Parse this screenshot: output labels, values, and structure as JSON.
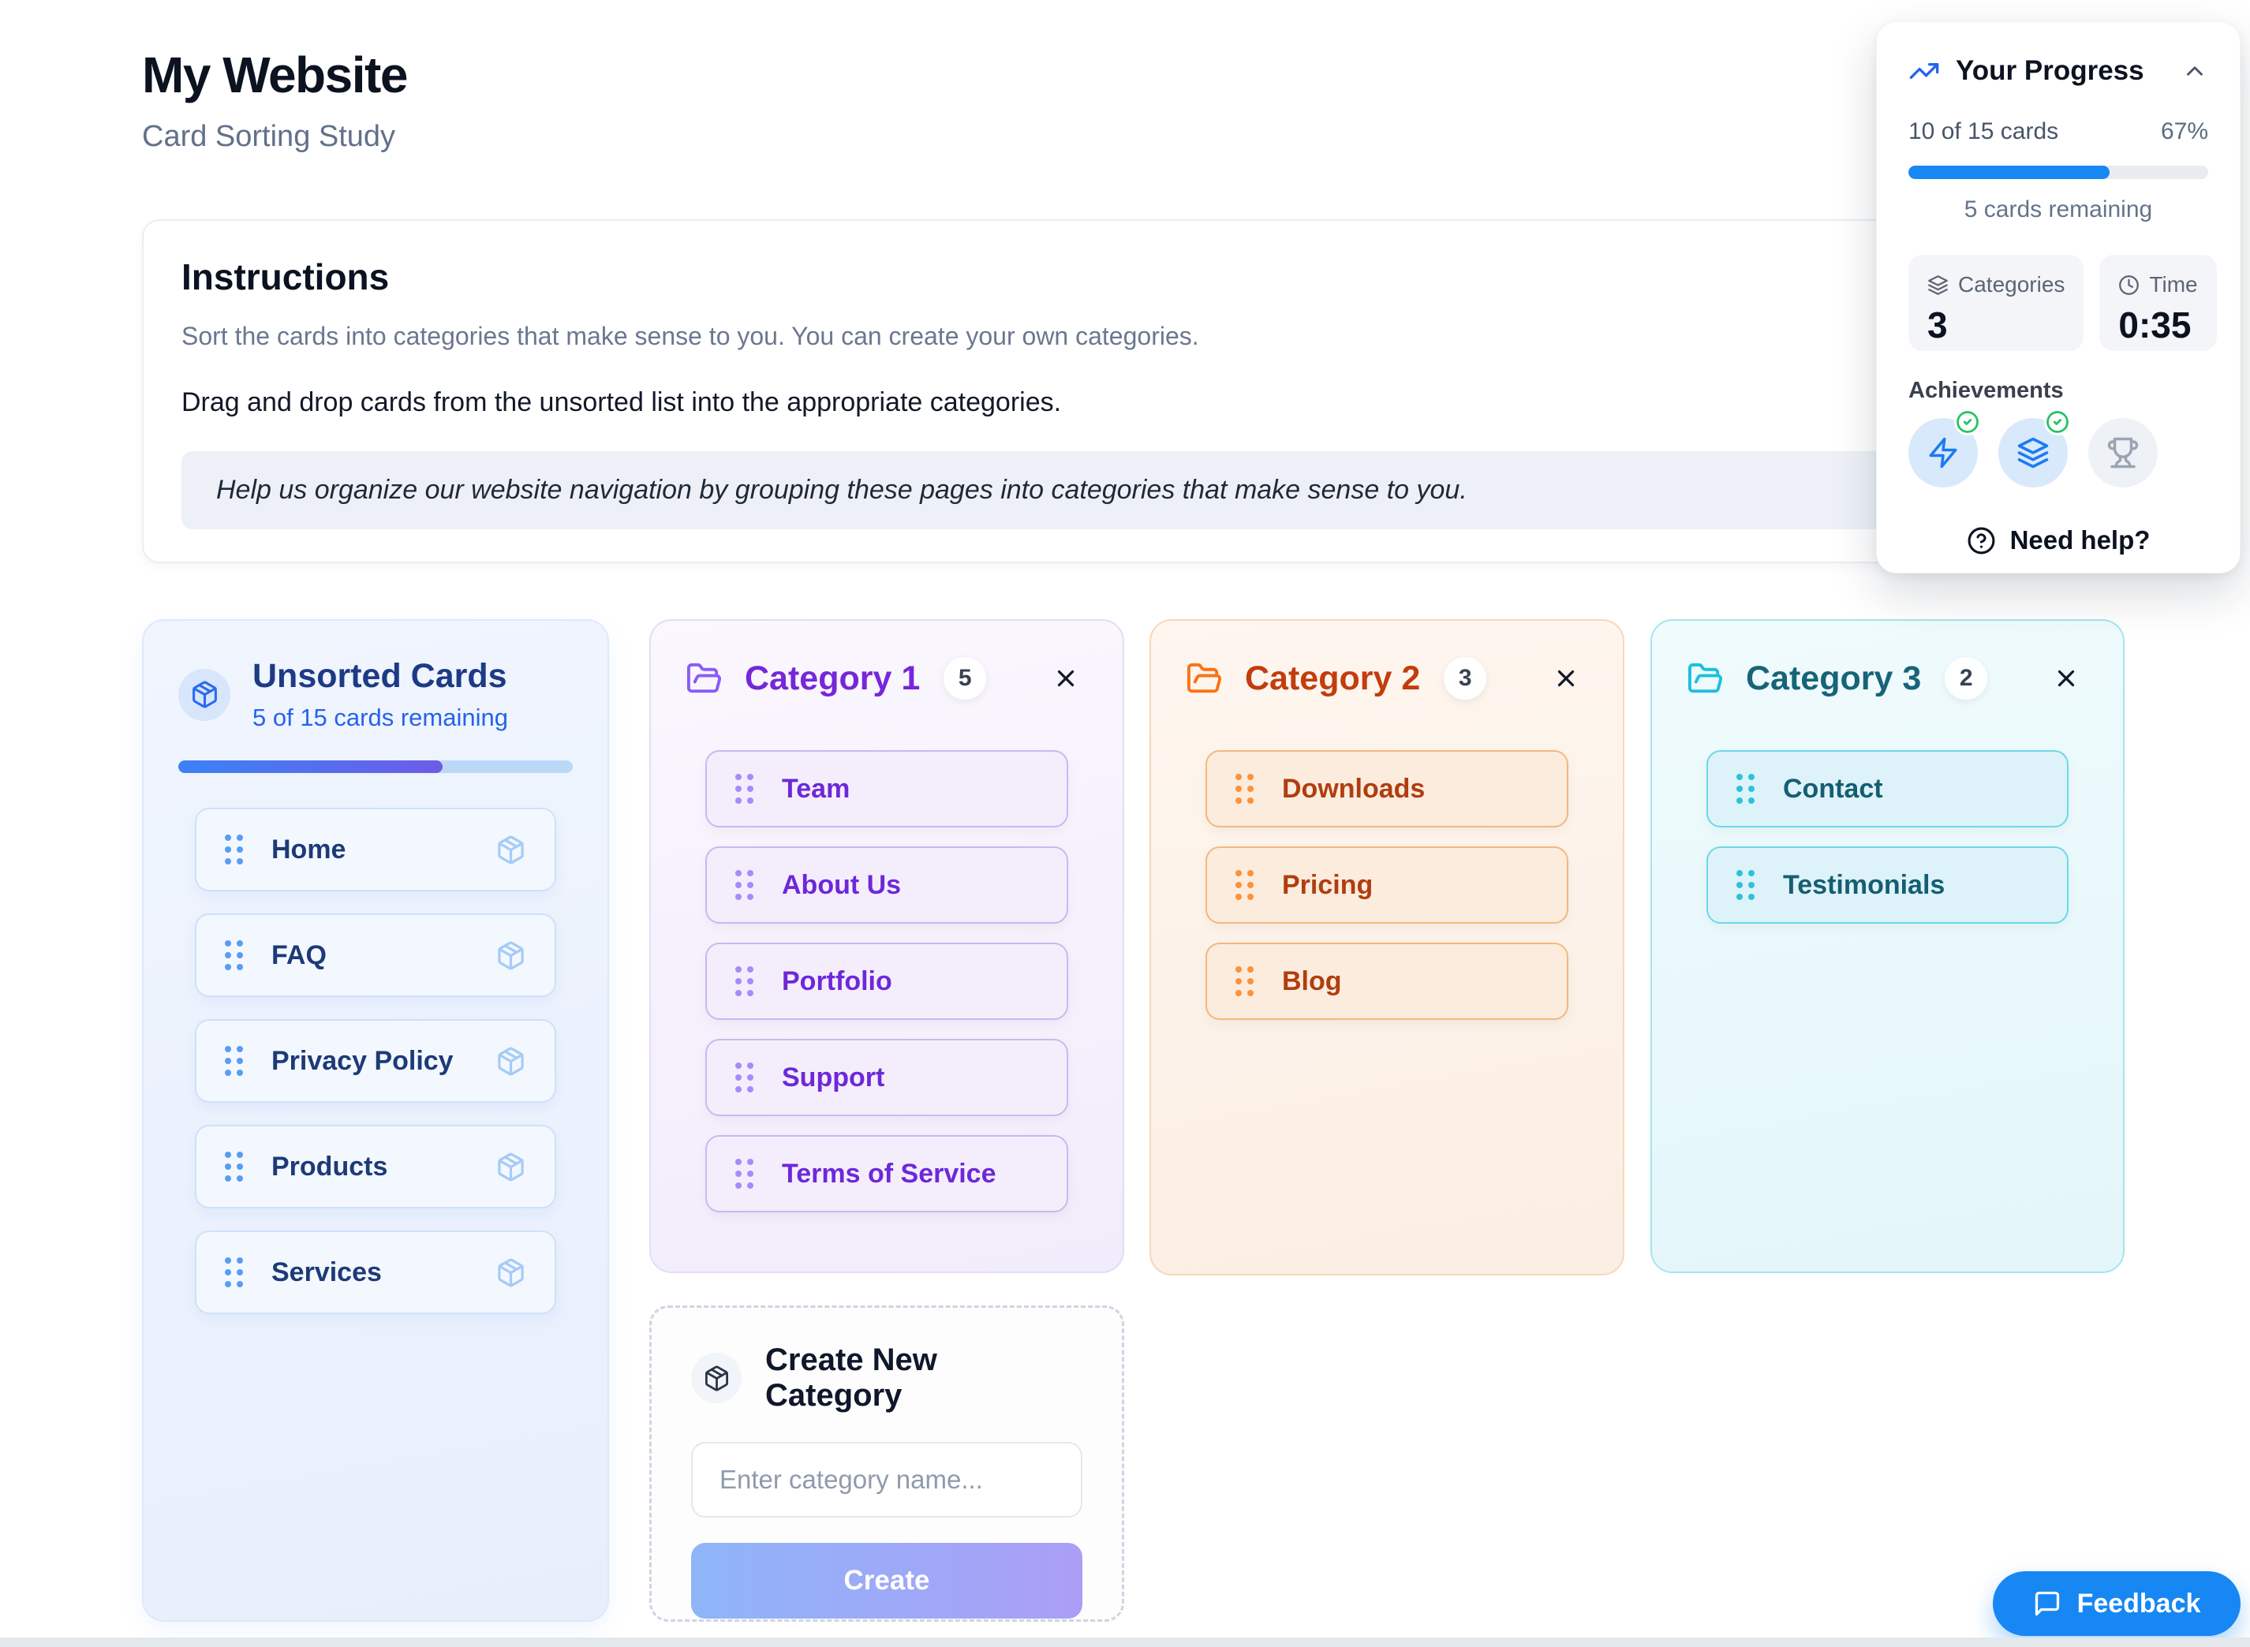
{
  "page": {
    "title": "My Website",
    "subtitle": "Card Sorting Study"
  },
  "instructions": {
    "title": "Instructions",
    "line1": "Sort the cards into categories that make sense to you. You can create your own categories.",
    "line2": "Drag and drop cards from the unsorted list into the appropriate categories.",
    "callout": "Help us organize our website navigation by grouping these pages into categories that make sense to you."
  },
  "progress_panel": {
    "title": "Your Progress",
    "cards_count": "10 of 15 cards",
    "percent_label": "67%",
    "percent_value": 67,
    "remaining": "5 cards remaining",
    "stats": [
      {
        "icon": "layers-icon",
        "label": "Categories",
        "value": "3"
      },
      {
        "icon": "clock-icon",
        "label": "Time",
        "value": "0:35"
      }
    ],
    "achievements_label": "Achievements",
    "achievements": [
      {
        "icon": "zap-icon",
        "earned": true
      },
      {
        "icon": "layers-icon",
        "earned": true
      },
      {
        "icon": "trophy-icon",
        "earned": false
      }
    ],
    "help_label": "Need help?"
  },
  "unsorted": {
    "title": "Unsorted Cards",
    "subtitle": "5 of 15 cards remaining",
    "progress_percent": 67,
    "cards": [
      "Home",
      "FAQ",
      "Privacy Policy",
      "Products",
      "Services"
    ]
  },
  "categories": [
    {
      "name": "Category 1",
      "count": "5",
      "cards": [
        "Team",
        "About Us",
        "Portfolio",
        "Support",
        "Terms of Service"
      ]
    },
    {
      "name": "Category 2",
      "count": "3",
      "cards": [
        "Downloads",
        "Pricing",
        "Blog"
      ]
    },
    {
      "name": "Category 3",
      "count": "2",
      "cards": [
        "Contact",
        "Testimonials"
      ]
    }
  ],
  "create_category": {
    "title": "Create New Category",
    "input_placeholder": "Enter category name...",
    "button_label": "Create"
  },
  "feedback": {
    "label": "Feedback"
  },
  "colors": {
    "accent_blue": "#1787f3",
    "unsorted_blue": "#2563eb",
    "category1_purple": "#7c3aed",
    "category2_orange": "#ea580c",
    "category3_teal": "#0e7490",
    "progress_gradient_start": "#3b82f6",
    "progress_gradient_end": "#6d5ce8",
    "achievement_check_green": "#22c55e"
  }
}
